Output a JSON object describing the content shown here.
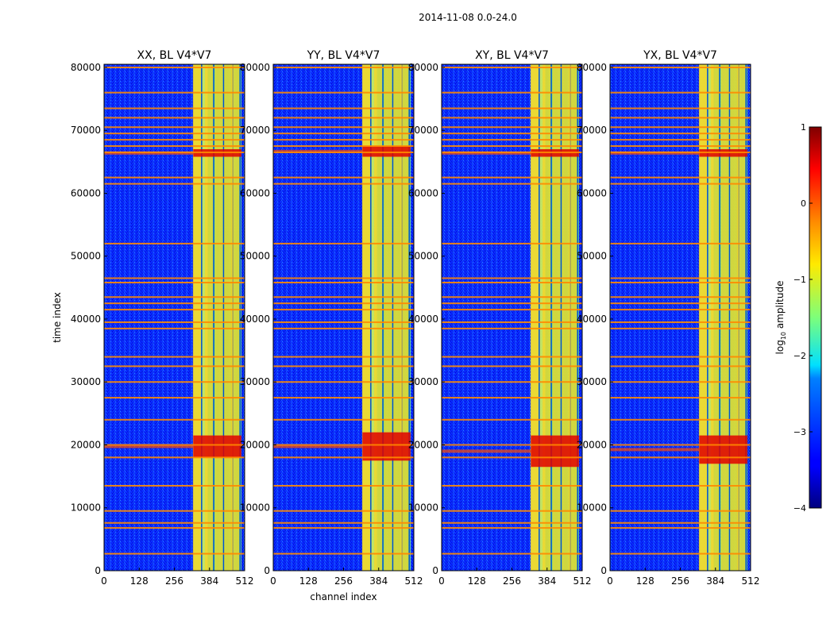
{
  "figure": {
    "suptitle": "2014-11-08 0.0-24.0",
    "shared_xlabel": "channel index",
    "shared_ylabel": "time index"
  },
  "colorbar": {
    "label_prefix": "log",
    "label_sub": "10",
    "label_suffix": " amplitude",
    "ticks": [
      1,
      0,
      -1,
      -2,
      -3,
      -4
    ],
    "tick_labels": [
      "1",
      "0",
      "−1",
      "−2",
      "−3",
      "−4"
    ],
    "range": [
      -4,
      1
    ],
    "colormap": "jet"
  },
  "chart_data": [
    {
      "type": "heatmap",
      "title": "XX, BL V4*V7",
      "xlabel": "",
      "ylabel": "time index",
      "xlim": [
        0,
        512
      ],
      "ylim": [
        0,
        80500
      ],
      "xticks": [
        0,
        128,
        256,
        384,
        512
      ],
      "yticks": [
        0,
        10000,
        20000,
        30000,
        40000,
        50000,
        60000,
        70000,
        80000
      ],
      "xtick_labels": [
        "0",
        "128",
        "256",
        "384",
        "512"
      ],
      "ytick_labels": [
        "0",
        "10000",
        "20000",
        "30000",
        "40000",
        "50000",
        "60000",
        "70000",
        "80000"
      ],
      "bright_channel_band": [
        325,
        500
      ],
      "flagged_rows": [
        2700,
        6800,
        7600,
        9500,
        13500,
        18000,
        20000,
        24000,
        27500,
        30000,
        32500,
        34000,
        38500,
        39500,
        41500,
        42500,
        43500,
        45800,
        46500,
        52000,
        61500,
        62500,
        66500,
        67500,
        68500,
        69500,
        70500,
        72000,
        73500,
        76000,
        80000
      ],
      "strong_rows": [
        [
          18000,
          21500
        ],
        [
          65800,
          67000
        ]
      ],
      "hot_channels": [
        338,
        382,
        418,
        452,
        478
      ]
    },
    {
      "type": "heatmap",
      "title": "YY, BL V4*V7",
      "xlabel": "channel index",
      "ylabel": "",
      "xlim": [
        0,
        512
      ],
      "ylim": [
        0,
        80500
      ],
      "xticks": [
        0,
        128,
        256,
        384,
        512
      ],
      "yticks": [
        0,
        10000,
        20000,
        30000,
        40000,
        50000,
        60000,
        70000,
        80000
      ],
      "xtick_labels": [
        "0",
        "128",
        "256",
        "384",
        "512"
      ],
      "ytick_labels": [
        "0",
        "10000",
        "20000",
        "30000",
        "40000",
        "50000",
        "60000",
        "70000",
        "80000"
      ],
      "bright_channel_band": [
        325,
        500
      ],
      "flagged_rows": [
        2700,
        6800,
        7600,
        9500,
        13500,
        18000,
        20000,
        24000,
        27500,
        30000,
        32500,
        34000,
        38500,
        39500,
        41500,
        42500,
        43500,
        45800,
        46500,
        52000,
        61500,
        62500,
        66500,
        67500,
        68500,
        69500,
        70500,
        72000,
        73500,
        76000,
        80000
      ],
      "strong_rows": [
        [
          17500,
          22000
        ],
        [
          65800,
          67500
        ]
      ],
      "hot_channels": [
        338,
        382,
        418,
        452,
        478
      ]
    },
    {
      "type": "heatmap",
      "title": "XY, BL V4*V7",
      "xlabel": "",
      "ylabel": "",
      "xlim": [
        0,
        512
      ],
      "ylim": [
        0,
        80500
      ],
      "xticks": [
        0,
        128,
        256,
        384,
        512
      ],
      "yticks": [
        0,
        10000,
        20000,
        30000,
        40000,
        50000,
        60000,
        70000,
        80000
      ],
      "xtick_labels": [
        "0",
        "128",
        "256",
        "384",
        "512"
      ],
      "ytick_labels": [
        "0",
        "10000",
        "20000",
        "30000",
        "40000",
        "50000",
        "60000",
        "70000",
        "80000"
      ],
      "bright_channel_band": [
        325,
        500
      ],
      "flagged_rows": [
        2700,
        6800,
        7600,
        9500,
        13500,
        18000,
        20000,
        24000,
        27500,
        30000,
        32500,
        34000,
        38500,
        39500,
        41500,
        42500,
        43500,
        45800,
        46500,
        52000,
        61500,
        62500,
        66500,
        67500,
        68500,
        69500,
        70500,
        72000,
        73500,
        76000,
        80000
      ],
      "strong_rows": [
        [
          16500,
          21500
        ],
        [
          65800,
          67000
        ]
      ],
      "hot_channels": [
        338,
        382,
        418,
        452,
        478
      ]
    },
    {
      "type": "heatmap",
      "title": "YX, BL V4*V7",
      "xlabel": "",
      "ylabel": "",
      "xlim": [
        0,
        512
      ],
      "ylim": [
        0,
        80500
      ],
      "xticks": [
        0,
        128,
        256,
        384,
        512
      ],
      "yticks": [
        0,
        10000,
        20000,
        30000,
        40000,
        50000,
        60000,
        70000,
        80000
      ],
      "xtick_labels": [
        "0",
        "128",
        "256",
        "384",
        "512"
      ],
      "ytick_labels": [
        "0",
        "10000",
        "20000",
        "30000",
        "40000",
        "50000",
        "60000",
        "70000",
        "80000"
      ],
      "bright_channel_band": [
        325,
        500
      ],
      "flagged_rows": [
        2700,
        6800,
        7600,
        9500,
        13500,
        18000,
        20000,
        24000,
        27500,
        30000,
        32500,
        34000,
        38500,
        39500,
        41500,
        42500,
        43500,
        45800,
        46500,
        52000,
        61500,
        62500,
        66500,
        67500,
        68500,
        69500,
        70500,
        72000,
        73500,
        76000,
        80000
      ],
      "strong_rows": [
        [
          17000,
          21500
        ],
        [
          65800,
          67000
        ]
      ],
      "hot_channels": [
        338,
        382,
        418,
        452,
        478
      ]
    }
  ]
}
